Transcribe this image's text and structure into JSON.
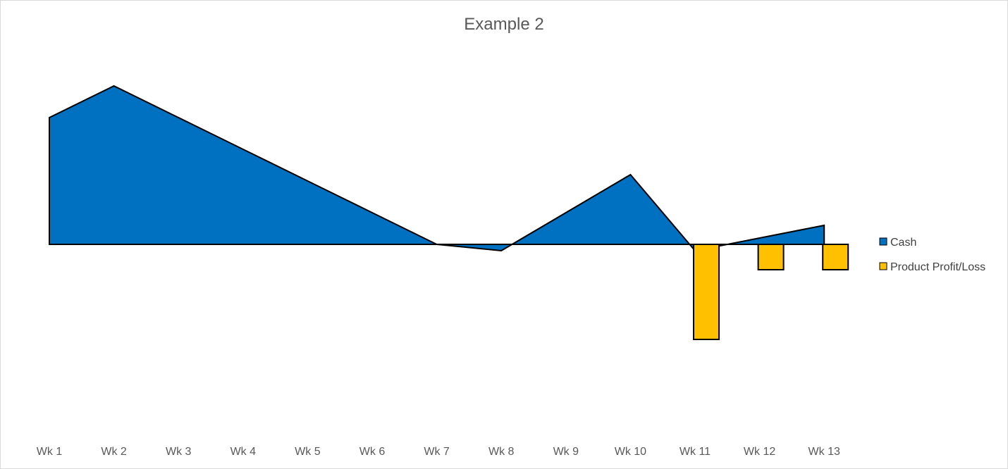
{
  "chart_data": {
    "type": "area",
    "title": "Example 2",
    "categories": [
      "Wk 1",
      "Wk 2",
      "Wk 3",
      "Wk 4",
      "Wk 5",
      "Wk 6",
      "Wk 7",
      "Wk 8",
      "Wk 9",
      "Wk 10",
      "Wk 11",
      "Wk 12",
      "Wk 13"
    ],
    "ylim": [
      -3,
      2.5
    ],
    "grid": false,
    "legend_position": "right",
    "series": [
      {
        "name": "Cash",
        "type": "area",
        "color": "#0070C0",
        "values": [
          2.0,
          2.5,
          2.0,
          1.5,
          1.0,
          0.5,
          0.0,
          -0.1,
          0.5,
          1.1,
          -0.1,
          0.1,
          0.3
        ]
      },
      {
        "name": "Product Profit/Loss",
        "type": "bar",
        "color": "#FFC000",
        "values": [
          null,
          null,
          null,
          null,
          null,
          null,
          null,
          null,
          null,
          null,
          -1.5,
          -0.4,
          -0.4
        ]
      }
    ]
  }
}
